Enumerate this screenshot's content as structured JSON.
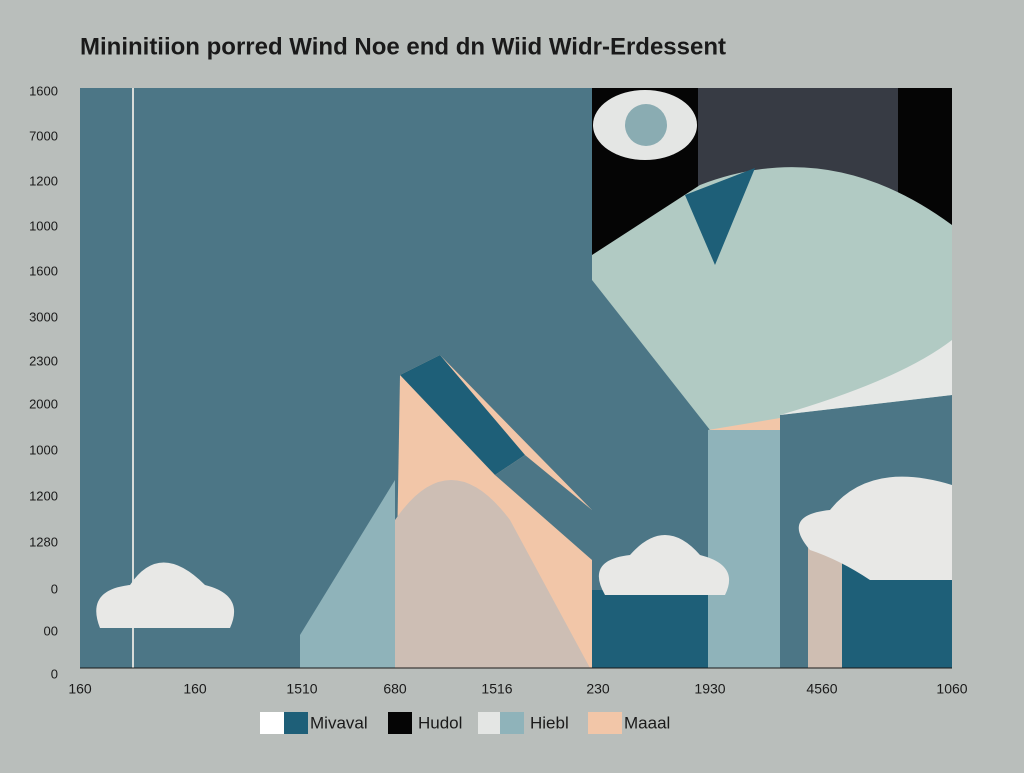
{
  "title": "Mininitiion porred Wind Noe end dn Wiid Widr-Erdessent",
  "y_axis_labels": [
    "1600",
    "7000",
    "1200",
    "1000",
    "1600",
    "3000",
    "2300",
    "2000",
    "1000",
    "1200",
    "1280",
    "0",
    "00",
    "0"
  ],
  "x_axis_labels": [
    "160",
    "160",
    "1510",
    "680",
    "1516",
    "230",
    "1930",
    "4560",
    "1060"
  ],
  "legend": [
    "Mivaval",
    "Hudol",
    "Hiebl",
    "Maaal"
  ]
}
